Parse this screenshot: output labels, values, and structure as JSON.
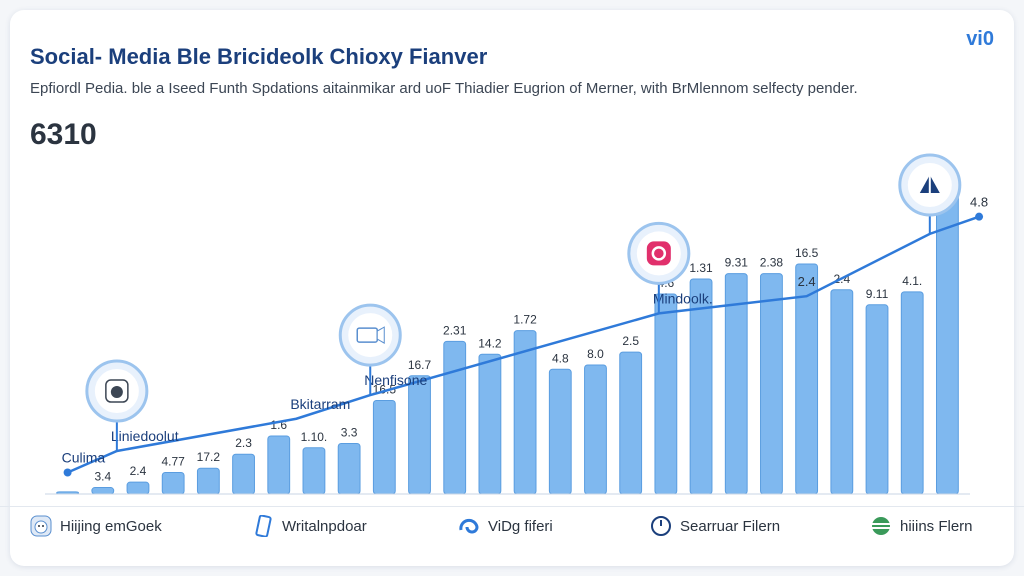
{
  "header": {
    "title": "Social- Media Ble Bricideolk Chioxy Fianver",
    "brand": "vi0",
    "subtitle": "Epfiordl Pedia. ble a Iseed Funth Spdations aitainmikar ard uoF Thiadier Eugrion of Merner, with BrMlennom selfecty pender.",
    "total": "6310"
  },
  "chart_data": {
    "type": "bar",
    "title": "Social- Media Ble Bricideolk Chioxy Fianver",
    "xlabel": "",
    "ylabel": "",
    "grid": false,
    "legend": "bottom",
    "bar_color": "#7fb8ef",
    "line_color": "#2f7ad9",
    "values": [
      0.2,
      0.6,
      1.1,
      2.0,
      2.4,
      3.7,
      5.4,
      4.3,
      4.7,
      8.7,
      11.0,
      14.2,
      13.0,
      15.2,
      11.6,
      12.0,
      13.2,
      18.6,
      20.0,
      20.5,
      20.5,
      21.4,
      19.0,
      17.6,
      18.8,
      28.0
    ],
    "bar_labels": [
      "",
      "3.4",
      "2.4",
      "4.77",
      "17.2",
      "2.3",
      "1.6",
      "1.10.",
      "3.3",
      "16.5",
      "16.7",
      "2.31",
      "14.2",
      "1.72",
      "4.8",
      "8.0",
      "2.5",
      "4.6",
      "1.31",
      "9.31",
      "2.38",
      "16.5",
      "2.4",
      "9.11",
      "4.1.",
      "4.8"
    ],
    "line": [
      {
        "x": 0,
        "y": 2.0,
        "label": "Culima",
        "annotation": "",
        "icon": ""
      },
      {
        "x": 1.4,
        "y": 4.0,
        "label": "Liniedoolut",
        "annotation": "",
        "icon": "camera-app-icon"
      },
      {
        "x": 6.5,
        "y": 7.0,
        "label": "Bkitarram",
        "annotation": "",
        "icon": ""
      },
      {
        "x": 8.6,
        "y": 9.2,
        "label": "Nenfisone",
        "annotation": "",
        "icon": "video-camera-icon"
      },
      {
        "x": 16.8,
        "y": 16.8,
        "label": "Mindoolk.",
        "annotation": "",
        "icon": "instagram-icon"
      },
      {
        "x": 21.0,
        "y": 18.4,
        "label": "",
        "annotation": "2.4",
        "icon": ""
      },
      {
        "x": 24.5,
        "y": 24.2,
        "label": "",
        "annotation": "",
        "icon": "broadcast-icon"
      },
      {
        "x": 25.9,
        "y": 25.8,
        "label": "",
        "annotation": "4.8",
        "icon": ""
      }
    ],
    "ylim": [
      0,
      32
    ]
  },
  "legend_items": [
    {
      "label": "Hiijing emGoek",
      "icon": "dog-avatar-icon",
      "color": "#5a8fcf"
    },
    {
      "label": "Writalnpdoar",
      "icon": "phone-icon",
      "color": "#2f7ad9"
    },
    {
      "label": "ViDg fiferi",
      "icon": "swirl-icon",
      "color": "#2f7ad9"
    },
    {
      "label": "Searruar Filern",
      "icon": "clock-icon",
      "color": "#1b3f7c"
    },
    {
      "label": "hiiins Flern",
      "icon": "striped-globe-icon",
      "color": "#3a9a5a"
    }
  ]
}
